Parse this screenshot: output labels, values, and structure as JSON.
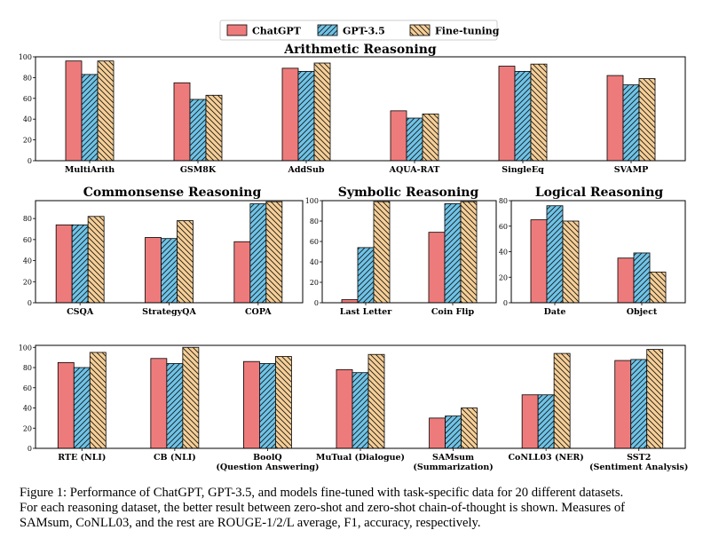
{
  "legend": {
    "series": [
      "ChatGPT",
      "GPT-3.5",
      "Fine-tuning"
    ],
    "colors": [
      "#ee7b7b",
      "#6ec4e8",
      "#f7cf96"
    ],
    "hatches": [
      "none",
      "slash",
      "backslash"
    ]
  },
  "chart_data": [
    {
      "type": "bar",
      "title": "Arithmetic Reasoning",
      "categories": [
        "MultiArith",
        "GSM8K",
        "AddSub",
        "AQUA-RAT",
        "SingleEq",
        "SVAMP"
      ],
      "series": [
        {
          "name": "ChatGPT",
          "values": [
            96,
            75,
            89,
            48,
            91,
            82
          ]
        },
        {
          "name": "GPT-3.5",
          "values": [
            83,
            59,
            86,
            41,
            86,
            73
          ]
        },
        {
          "name": "Fine-tuning",
          "values": [
            96,
            63,
            94,
            45,
            93,
            79
          ]
        }
      ],
      "ylim": [
        0,
        100
      ],
      "yticks": [
        "0",
        "20",
        "40",
        "60",
        "80",
        "100"
      ],
      "legend": "top-center"
    },
    {
      "type": "bar",
      "title": "Commonsense Reasoning",
      "categories": [
        "CSQA",
        "StrategyQA",
        "COPA"
      ],
      "series": [
        {
          "name": "ChatGPT",
          "values": [
            74,
            62,
            58
          ]
        },
        {
          "name": "GPT-3.5",
          "values": [
            74,
            61,
            94
          ]
        },
        {
          "name": "Fine-tuning",
          "values": [
            82,
            78,
            96
          ]
        }
      ],
      "ylim": [
        0,
        97
      ],
      "yticks": [
        "0",
        "20",
        "40",
        "60",
        "80"
      ]
    },
    {
      "type": "bar",
      "title": "Symbolic Reasoning",
      "categories": [
        "Last Letter",
        "Coin Flip"
      ],
      "series": [
        {
          "name": "ChatGPT",
          "values": [
            3,
            69
          ]
        },
        {
          "name": "GPT-3.5",
          "values": [
            54,
            97
          ]
        },
        {
          "name": "Fine-tuning",
          "values": [
            99,
            99
          ]
        }
      ],
      "ylim": [
        0,
        100
      ],
      "yticks": [
        "0",
        "20",
        "40",
        "60",
        "80",
        "100"
      ]
    },
    {
      "type": "bar",
      "title": "Logical Reasoning",
      "categories": [
        "Date",
        "Object"
      ],
      "series": [
        {
          "name": "ChatGPT",
          "values": [
            65,
            35
          ]
        },
        {
          "name": "GPT-3.5",
          "values": [
            76,
            39
          ]
        },
        {
          "name": "Fine-tuning",
          "values": [
            64,
            24
          ]
        }
      ],
      "ylim": [
        0,
        80
      ],
      "yticks": [
        "0",
        "20",
        "40",
        "60",
        "80"
      ]
    },
    {
      "type": "bar",
      "title": "",
      "categories": [
        [
          "RTE (NLI)"
        ],
        [
          "CB (NLI)"
        ],
        [
          "BoolQ",
          "(Question Answering)"
        ],
        [
          "MuTual (Dialogue)"
        ],
        [
          "SAMsum",
          "(Summarization)"
        ],
        [
          "CoNLL03 (NER)"
        ],
        [
          "SST2",
          "(Sentiment Analysis)"
        ]
      ],
      "series": [
        {
          "name": "ChatGPT",
          "values": [
            85,
            89,
            86,
            78,
            30,
            53,
            87
          ]
        },
        {
          "name": "GPT-3.5",
          "values": [
            80,
            84,
            84,
            75,
            32,
            53,
            88
          ]
        },
        {
          "name": "Fine-tuning",
          "values": [
            95,
            100,
            91,
            93,
            40,
            94,
            98
          ]
        }
      ],
      "ylim": [
        0,
        102
      ],
      "yticks": [
        "0",
        "20",
        "40",
        "60",
        "80",
        "100"
      ]
    }
  ],
  "caption": {
    "lines": [
      "Figure 1: Performance of ChatGPT, GPT-3.5, and models fine-tuned with task-specific data for 20 different datasets.",
      "For each reasoning dataset, the better result between zero-shot and zero-shot chain-of-thought is shown. Measures of",
      "SAMsum, CoNLL03, and the rest are ROUGE-1/2/L average, F1, accuracy, respectively."
    ]
  }
}
